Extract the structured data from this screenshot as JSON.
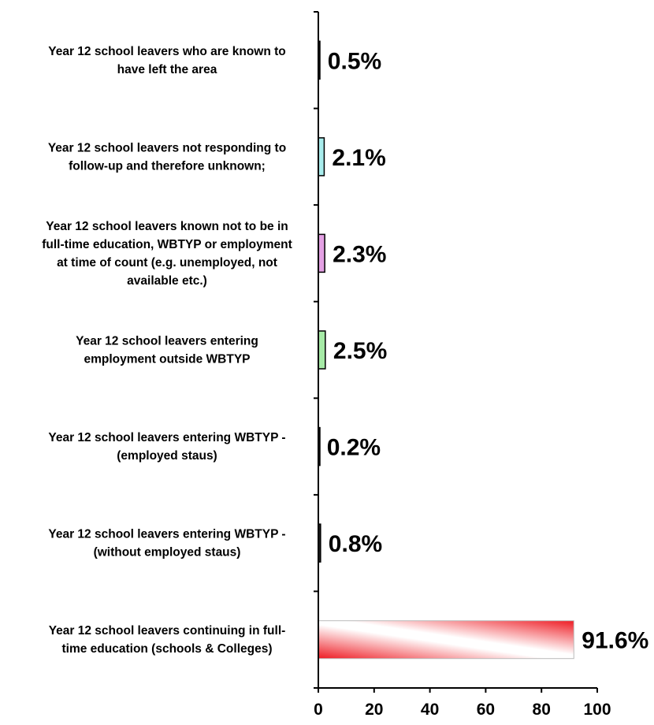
{
  "chart_data": {
    "type": "bar",
    "orientation": "horizontal",
    "categories": [
      [
        "Year 12 school leavers who are known to",
        "have left the area"
      ],
      [
        "Year 12 school leavers not responding to",
        "follow-up and therefore unknown;"
      ],
      [
        "Year 12 school leavers known not to be in",
        "full-time education, WBTYP or employment",
        "at time of count (e.g. unemployed, not",
        "available etc.)"
      ],
      [
        "Year 12 school leavers entering",
        "employment outside WBTYP"
      ],
      [
        "Year 12 school leavers entering WBTYP -",
        "(employed staus)"
      ],
      [
        "Year 12 school leavers entering WBTYP -",
        "(without employed staus)"
      ],
      [
        "Year 12 school leavers continuing in full-",
        "time education (schools & Colleges)"
      ]
    ],
    "values": [
      0.5,
      2.1,
      2.3,
      2.5,
      0.2,
      0.8,
      91.6
    ],
    "value_labels": [
      "0.5%",
      "2.1%",
      "2.3%",
      "2.5%",
      "0.2%",
      "0.8%",
      "91.6%"
    ],
    "bar_colors": [
      "#222222",
      "#a8ecec",
      "#e3a0e3",
      "#a6eaa6",
      "#222222",
      "#222222",
      "#ee1c24"
    ],
    "xlim": [
      0,
      100
    ],
    "xticks": [
      0,
      20,
      40,
      60,
      80,
      100
    ],
    "xtick_labels": [
      "0",
      "20",
      "40",
      "60",
      "80",
      "100"
    ],
    "title": "",
    "xlabel": "",
    "ylabel": "",
    "grid": false,
    "legend": false
  }
}
